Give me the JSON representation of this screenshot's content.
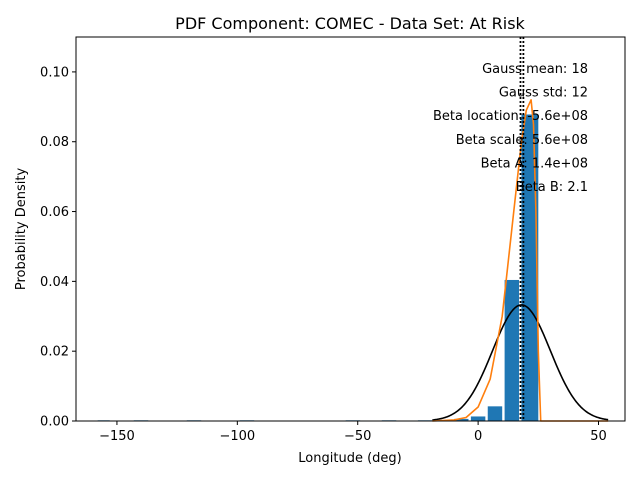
{
  "chart_data": {
    "type": "bar",
    "title": "PDF Component: COMEC - Data Set: At Risk",
    "xlabel": "Longitude (deg)",
    "ylabel": "Probability Density",
    "xlim": [
      -167,
      61
    ],
    "ylim": [
      0,
      0.11
    ],
    "xticks": [
      -150,
      -100,
      -50,
      0,
      50
    ],
    "xtick_labels": [
      "−150",
      "−100",
      "−50",
      "0",
      "50"
    ],
    "yticks": [
      0,
      0.02,
      0.04,
      0.06,
      0.08,
      0.1
    ],
    "ytick_labels": [
      "0.00",
      "0.02",
      "0.04",
      "0.06",
      "0.08",
      "0.10"
    ],
    "grid": false,
    "bar_color": "#1f77b4",
    "histogram": {
      "bins": [
        {
          "left": -158,
          "right": -153,
          "value": 0.0002
        },
        {
          "left": -143,
          "right": -137,
          "value": 0.0002
        },
        {
          "left": -121,
          "right": -115,
          "value": 0.0002
        },
        {
          "left": -99,
          "right": -93,
          "value": 0.0002
        },
        {
          "left": -55,
          "right": -49,
          "value": 0.0002
        },
        {
          "left": -40,
          "right": -34,
          "value": 0.0002
        },
        {
          "left": -25,
          "right": -19,
          "value": 0.0002
        },
        {
          "left": -10,
          "right": -4,
          "value": 0.0006
        },
        {
          "left": -3,
          "right": 3,
          "value": 0.0013
        },
        {
          "left": 4,
          "right": 10,
          "value": 0.0042
        },
        {
          "left": 11,
          "right": 17,
          "value": 0.0404
        },
        {
          "left": 18,
          "right": 25,
          "value": 0.0878
        }
      ]
    },
    "gauss_curve": {
      "color": "#000000",
      "mean": 18,
      "std": 12,
      "x_range": [
        -19,
        54
      ]
    },
    "beta_curve": {
      "color": "#ff7f0e",
      "x": [
        -19,
        -10,
        -5,
        0,
        5,
        10,
        14,
        18,
        20,
        22,
        23,
        24,
        25,
        26,
        40,
        54
      ],
      "y": [
        0,
        0.0003,
        0.001,
        0.004,
        0.012,
        0.03,
        0.055,
        0.08,
        0.089,
        0.092,
        0.085,
        0.06,
        0.02,
        0,
        0,
        0
      ]
    },
    "vlines": [
      {
        "x": 17.6,
        "style": "dotted",
        "color": "#000000"
      },
      {
        "x": 18.8,
        "style": "dotted",
        "color": "#000000"
      }
    ],
    "annotations": [
      "Gauss mean: 18",
      "Gauss std: 12",
      "Beta location: -5.6e+08",
      "Beta scale: 5.6e+08",
      "Beta A: 1.4e+08",
      "Beta B: 2.1"
    ]
  }
}
